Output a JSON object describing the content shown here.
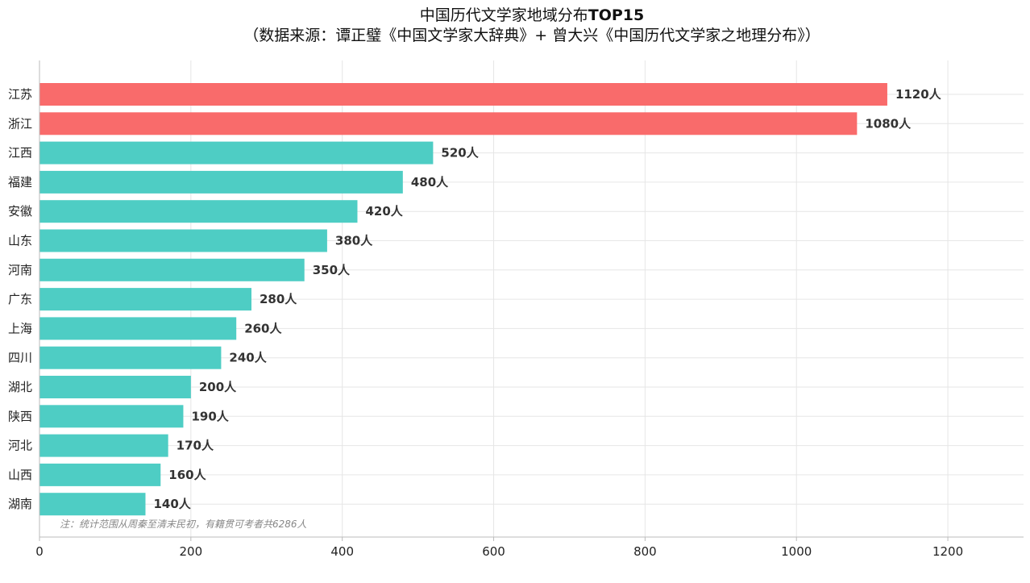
{
  "chart_data": {
    "type": "bar",
    "orientation": "horizontal",
    "title_line1_a": "中国历代文学家地域分布",
    "title_line1_b": "TOP15",
    "title_line2": "（数据来源：谭正璧《中国文学家大辞典》+ 曾大兴《中国历代文学家之地理分布》）",
    "categories": [
      "江苏",
      "浙江",
      "江西",
      "福建",
      "安徽",
      "山东",
      "河南",
      "广东",
      "上海",
      "四川",
      "湖北",
      "陕西",
      "河北",
      "山西",
      "湖南"
    ],
    "values": [
      1120,
      1080,
      520,
      480,
      420,
      380,
      350,
      280,
      260,
      240,
      200,
      190,
      170,
      160,
      140
    ],
    "value_labels": [
      "1120人",
      "1080人",
      "520人",
      "480人",
      "420人",
      "380人",
      "350人",
      "280人",
      "260人",
      "240人",
      "200人",
      "190人",
      "170人",
      "160人",
      "140人"
    ],
    "highlight_count": 2,
    "highlight_color": "#f96b6b",
    "bar_color": "#4ecdc4",
    "xlim": [
      0,
      1300
    ],
    "xticks": [
      0,
      200,
      400,
      600,
      800,
      1000,
      1200
    ],
    "xtick_labels": [
      "0",
      "200",
      "400",
      "600",
      "800",
      "1000",
      "1200"
    ],
    "grid": true,
    "note": "注：统计范围从周秦至清末民初，有籍贯可考者共6286人"
  }
}
